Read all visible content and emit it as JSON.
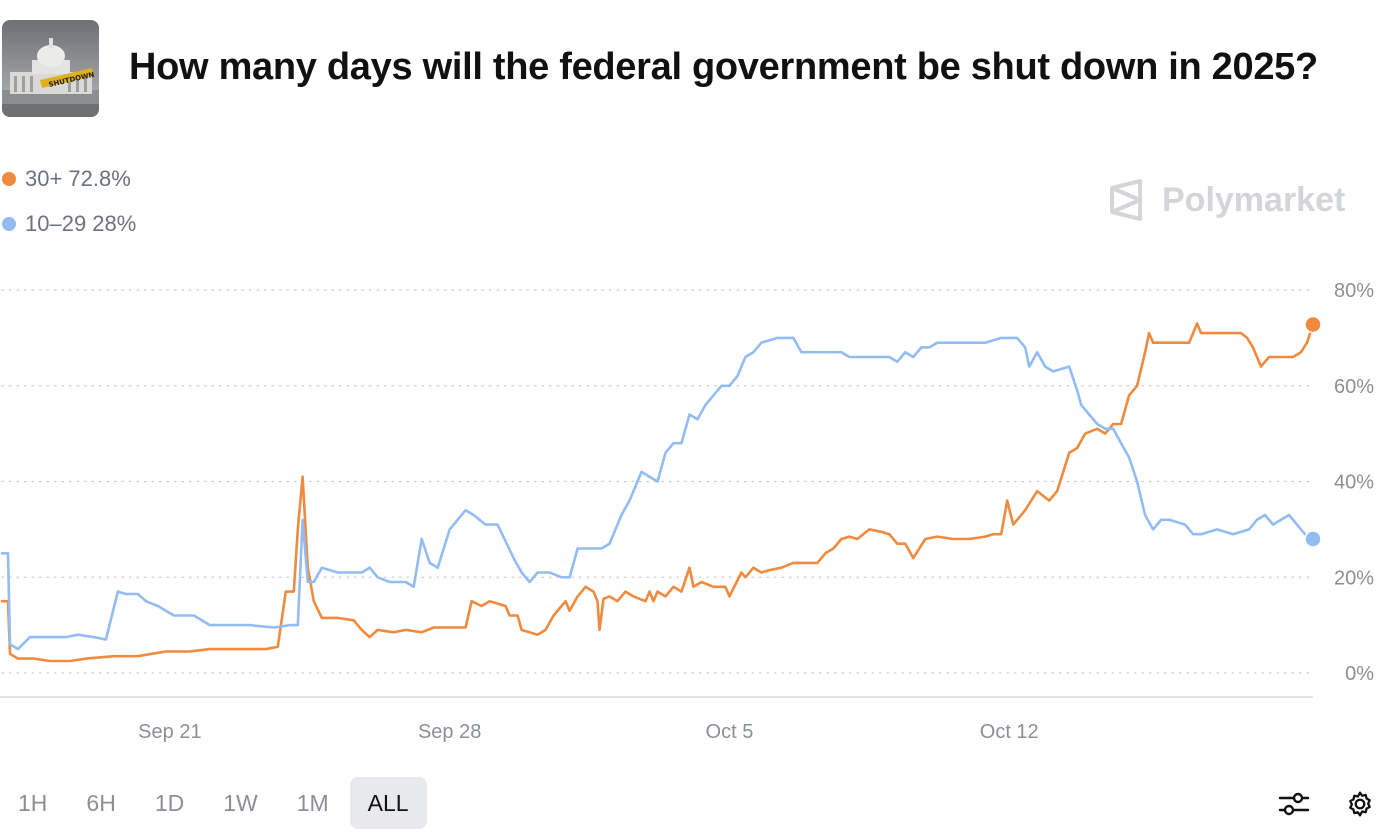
{
  "header": {
    "title": "How many days will the federal government be shut down in 2025?",
    "thumbnail_icon": "capitol-shutdown-image"
  },
  "legend": [
    {
      "label": "30+ 72.8%",
      "color": "#ef8a3f"
    },
    {
      "label": "10–29 28%",
      "color": "#93bcf3"
    }
  ],
  "watermark": {
    "text": "Polymarket",
    "icon": "polymarket-logo-icon"
  },
  "controls": {
    "ranges": [
      "1H",
      "6H",
      "1D",
      "1W",
      "1M",
      "ALL"
    ],
    "active": "ALL",
    "filter_icon": "sliders-icon",
    "settings_icon": "gear-icon"
  },
  "chart_data": {
    "type": "line",
    "y_ticks": [
      "80%",
      "60%",
      "40%",
      "20%",
      "0%"
    ],
    "x_ticks": [
      {
        "label": "Sep 21",
        "day": 21
      },
      {
        "label": "Sep 28",
        "day": 28
      },
      {
        "label": "Oct 5",
        "day": 35
      },
      {
        "label": "Oct 12",
        "day": 42
      }
    ],
    "xlim_day": [
      16.8,
      45.7
    ],
    "ylim": [
      0,
      80
    ],
    "grid": "horizontal-dotted",
    "series": [
      {
        "name": "30+",
        "color": "#ef8a3f",
        "last_value": 72.8,
        "points": [
          [
            16.8,
            15
          ],
          [
            16.95,
            15
          ],
          [
            17.0,
            4
          ],
          [
            17.2,
            3
          ],
          [
            17.6,
            3
          ],
          [
            18.0,
            2.5
          ],
          [
            18.5,
            2.5
          ],
          [
            18.9,
            3
          ],
          [
            19.6,
            3.5
          ],
          [
            20.2,
            3.5
          ],
          [
            20.9,
            4.5
          ],
          [
            21.5,
            4.5
          ],
          [
            22.0,
            5
          ],
          [
            22.6,
            5
          ],
          [
            23.4,
            5
          ],
          [
            23.7,
            5.5
          ],
          [
            23.9,
            17
          ],
          [
            24.1,
            17
          ],
          [
            24.2,
            30
          ],
          [
            24.32,
            41
          ],
          [
            24.45,
            22
          ],
          [
            24.6,
            15
          ],
          [
            24.8,
            11.5
          ],
          [
            25.2,
            11.5
          ],
          [
            25.6,
            11
          ],
          [
            25.8,
            9
          ],
          [
            26.0,
            7.5
          ],
          [
            26.2,
            9
          ],
          [
            26.6,
            8.5
          ],
          [
            26.9,
            9
          ],
          [
            27.3,
            8.5
          ],
          [
            27.6,
            9.5
          ],
          [
            28.0,
            9.5
          ],
          [
            28.4,
            9.5
          ],
          [
            28.55,
            15
          ],
          [
            28.8,
            14
          ],
          [
            29.0,
            15
          ],
          [
            29.4,
            14
          ],
          [
            29.5,
            12
          ],
          [
            29.7,
            12
          ],
          [
            29.8,
            9
          ],
          [
            30.2,
            8
          ],
          [
            30.4,
            9
          ],
          [
            30.6,
            12
          ],
          [
            30.9,
            15
          ],
          [
            31.0,
            13
          ],
          [
            31.2,
            16
          ],
          [
            31.4,
            18
          ],
          [
            31.6,
            17
          ],
          [
            31.7,
            15
          ],
          [
            31.75,
            9
          ],
          [
            31.85,
            15.5
          ],
          [
            32.0,
            16
          ],
          [
            32.2,
            15
          ],
          [
            32.4,
            17
          ],
          [
            32.6,
            16
          ],
          [
            32.9,
            15
          ],
          [
            33.0,
            17
          ],
          [
            33.1,
            15
          ],
          [
            33.2,
            17
          ],
          [
            33.4,
            16
          ],
          [
            33.6,
            18
          ],
          [
            33.8,
            17
          ],
          [
            34.0,
            22
          ],
          [
            34.1,
            18
          ],
          [
            34.3,
            19
          ],
          [
            34.6,
            18
          ],
          [
            34.9,
            18
          ],
          [
            35.0,
            16
          ],
          [
            35.3,
            21
          ],
          [
            35.4,
            20
          ],
          [
            35.6,
            22
          ],
          [
            35.8,
            21
          ],
          [
            36.0,
            21.5
          ],
          [
            36.3,
            22
          ],
          [
            36.6,
            23
          ],
          [
            37.0,
            23
          ],
          [
            37.2,
            23
          ],
          [
            37.4,
            25
          ],
          [
            37.6,
            26
          ],
          [
            37.8,
            28
          ],
          [
            38.0,
            28.5
          ],
          [
            38.2,
            28
          ],
          [
            38.5,
            30
          ],
          [
            38.8,
            29.5
          ],
          [
            39.0,
            29
          ],
          [
            39.2,
            27
          ],
          [
            39.4,
            27
          ],
          [
            39.6,
            24
          ],
          [
            39.9,
            28
          ],
          [
            40.2,
            28.5
          ],
          [
            40.6,
            28
          ],
          [
            41.0,
            28
          ],
          [
            41.4,
            28.5
          ],
          [
            41.6,
            29
          ],
          [
            41.8,
            29
          ],
          [
            41.95,
            36
          ],
          [
            42.1,
            31
          ],
          [
            42.4,
            34
          ],
          [
            42.7,
            38
          ],
          [
            43.0,
            36
          ],
          [
            43.2,
            38
          ],
          [
            43.5,
            46
          ],
          [
            43.7,
            47
          ],
          [
            43.9,
            50
          ],
          [
            44.2,
            51
          ],
          [
            44.4,
            50
          ],
          [
            44.6,
            52
          ],
          [
            44.8,
            52
          ],
          [
            45.0,
            58
          ],
          [
            45.2,
            60
          ],
          [
            45.4,
            67
          ],
          [
            45.5,
            71
          ],
          [
            45.6,
            69
          ],
          [
            46.0,
            69
          ],
          [
            46.5,
            69
          ],
          [
            46.7,
            73
          ],
          [
            46.8,
            71
          ],
          [
            47.0,
            71
          ],
          [
            47.4,
            71
          ],
          [
            47.6,
            71
          ],
          [
            47.8,
            71
          ],
          [
            47.95,
            70
          ],
          [
            48.1,
            68
          ],
          [
            48.3,
            64
          ],
          [
            48.5,
            66
          ],
          [
            48.9,
            66
          ],
          [
            49.1,
            66
          ],
          [
            49.3,
            67
          ],
          [
            49.45,
            69
          ],
          [
            49.6,
            72.8
          ]
        ]
      },
      {
        "name": "10–29",
        "color": "#93bcf3",
        "last_value": 28,
        "points": [
          [
            16.8,
            25
          ],
          [
            16.95,
            25
          ],
          [
            17.0,
            6
          ],
          [
            17.2,
            5
          ],
          [
            17.5,
            7.5
          ],
          [
            17.9,
            7.5
          ],
          [
            18.4,
            7.5
          ],
          [
            18.7,
            8
          ],
          [
            19.1,
            7.5
          ],
          [
            19.4,
            7
          ],
          [
            19.7,
            17
          ],
          [
            19.9,
            16.5
          ],
          [
            20.2,
            16.5
          ],
          [
            20.4,
            15
          ],
          [
            20.7,
            14
          ],
          [
            21.1,
            12
          ],
          [
            21.6,
            12
          ],
          [
            22.0,
            10
          ],
          [
            22.4,
            10
          ],
          [
            23.0,
            10
          ],
          [
            23.6,
            9.5
          ],
          [
            24.0,
            10
          ],
          [
            24.2,
            10
          ],
          [
            24.32,
            32
          ],
          [
            24.45,
            19
          ],
          [
            24.6,
            19
          ],
          [
            24.8,
            22
          ],
          [
            25.2,
            21
          ],
          [
            25.5,
            21
          ],
          [
            25.8,
            21
          ],
          [
            26.0,
            22
          ],
          [
            26.2,
            20
          ],
          [
            26.5,
            19
          ],
          [
            26.9,
            19
          ],
          [
            27.1,
            18
          ],
          [
            27.3,
            28
          ],
          [
            27.5,
            23
          ],
          [
            27.7,
            22
          ],
          [
            28.0,
            30
          ],
          [
            28.4,
            34
          ],
          [
            28.6,
            33
          ],
          [
            28.9,
            31
          ],
          [
            29.2,
            31
          ],
          [
            29.6,
            24
          ],
          [
            29.8,
            21
          ],
          [
            30.0,
            19
          ],
          [
            30.2,
            21
          ],
          [
            30.5,
            21
          ],
          [
            30.8,
            20
          ],
          [
            31.0,
            20
          ],
          [
            31.2,
            26
          ],
          [
            31.4,
            26
          ],
          [
            31.8,
            26
          ],
          [
            32.0,
            27
          ],
          [
            32.3,
            33
          ],
          [
            32.5,
            36
          ],
          [
            32.8,
            42
          ],
          [
            33.0,
            41
          ],
          [
            33.2,
            40
          ],
          [
            33.4,
            46
          ],
          [
            33.6,
            48
          ],
          [
            33.8,
            48
          ],
          [
            34.0,
            54
          ],
          [
            34.2,
            53
          ],
          [
            34.4,
            56
          ],
          [
            34.6,
            58
          ],
          [
            34.8,
            60
          ],
          [
            35.0,
            60
          ],
          [
            35.2,
            62
          ],
          [
            35.4,
            66
          ],
          [
            35.6,
            67
          ],
          [
            35.8,
            69
          ],
          [
            36.2,
            70
          ],
          [
            36.6,
            70
          ],
          [
            36.8,
            67
          ],
          [
            37.0,
            67
          ],
          [
            37.4,
            67
          ],
          [
            37.8,
            67
          ],
          [
            38.0,
            66
          ],
          [
            38.4,
            66
          ],
          [
            38.8,
            66
          ],
          [
            39.0,
            66
          ],
          [
            39.2,
            65
          ],
          [
            39.4,
            67
          ],
          [
            39.6,
            66
          ],
          [
            39.8,
            68
          ],
          [
            40.0,
            68
          ],
          [
            40.2,
            69
          ],
          [
            40.6,
            69
          ],
          [
            41.0,
            69
          ],
          [
            41.4,
            69
          ],
          [
            41.8,
            70
          ],
          [
            42.2,
            70
          ],
          [
            42.4,
            68
          ],
          [
            42.5,
            64
          ],
          [
            42.7,
            67
          ],
          [
            42.9,
            64
          ],
          [
            43.1,
            63
          ],
          [
            43.5,
            64
          ],
          [
            43.7,
            59
          ],
          [
            43.8,
            56
          ],
          [
            44.0,
            54
          ],
          [
            44.2,
            52
          ],
          [
            44.4,
            51
          ],
          [
            44.6,
            51
          ],
          [
            44.8,
            48
          ],
          [
            45.0,
            45
          ],
          [
            45.2,
            40
          ],
          [
            45.4,
            33
          ],
          [
            45.6,
            30
          ],
          [
            45.8,
            32
          ],
          [
            46.0,
            32
          ],
          [
            46.4,
            31
          ],
          [
            46.6,
            29
          ],
          [
            46.8,
            29
          ],
          [
            47.2,
            30
          ],
          [
            47.6,
            29
          ],
          [
            48.0,
            30
          ],
          [
            48.2,
            32
          ],
          [
            48.4,
            33
          ],
          [
            48.6,
            31
          ],
          [
            48.8,
            32
          ],
          [
            49.0,
            33
          ],
          [
            49.2,
            31
          ],
          [
            49.4,
            29
          ],
          [
            49.6,
            28
          ]
        ]
      }
    ]
  }
}
